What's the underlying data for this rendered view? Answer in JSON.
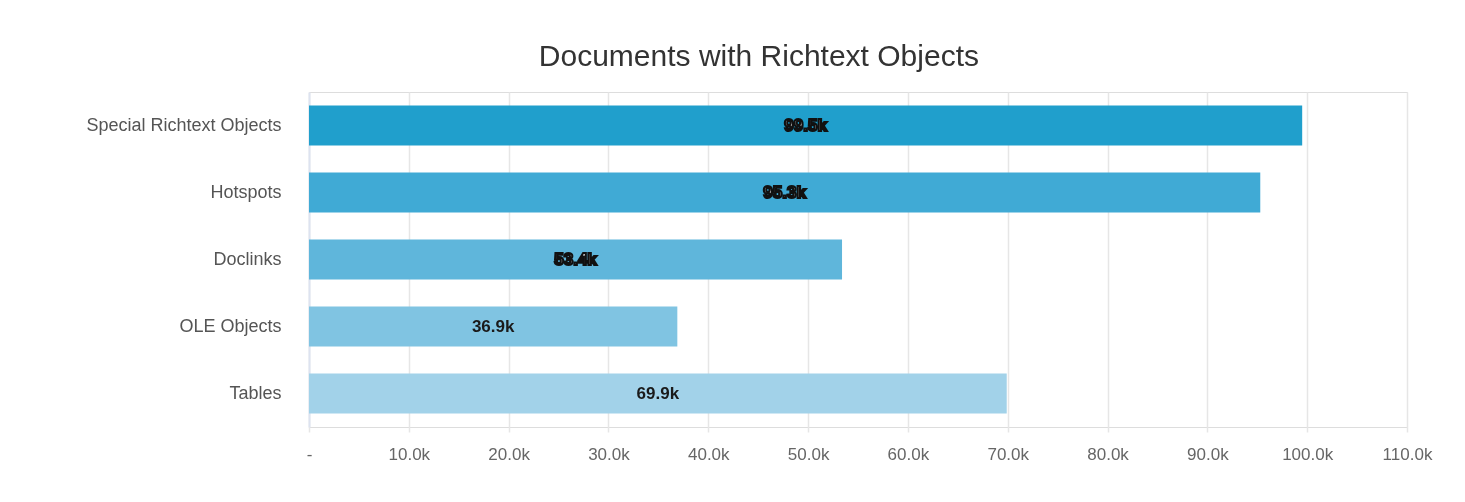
{
  "chart_data": {
    "type": "bar",
    "orientation": "horizontal",
    "title": "Documents with Richtext Objects",
    "categories": [
      "Special Richtext Objects",
      "Hotspots",
      "Doclinks",
      "OLE Objects",
      "Tables"
    ],
    "values": [
      99500,
      95300,
      53400,
      36900,
      69900
    ],
    "colors": [
      "#209fcc",
      "#40aad5",
      "#5fb6db",
      "#80c4e2",
      "#a2d2e9"
    ],
    "value_labels": [
      "99.5k",
      "95.3k",
      "53.4k",
      "36.9k",
      "69.9k"
    ],
    "xlim": [
      0,
      110000
    ],
    "xticks": [
      {
        "value": 0,
        "label": "-"
      },
      {
        "value": 10000,
        "label": "10.0k"
      },
      {
        "value": 20000,
        "label": "20.0k"
      },
      {
        "value": 30000,
        "label": "30.0k"
      },
      {
        "value": 40000,
        "label": "40.0k"
      },
      {
        "value": 50000,
        "label": "50.0k"
      },
      {
        "value": 60000,
        "label": "60.0k"
      },
      {
        "value": 70000,
        "label": "70.0k"
      },
      {
        "value": 80000,
        "label": "80.0k"
      },
      {
        "value": 90000,
        "label": "90.0k"
      },
      {
        "value": 100000,
        "label": "100.0k"
      },
      {
        "value": 110000,
        "label": "110.0k"
      }
    ],
    "grid": "x"
  }
}
